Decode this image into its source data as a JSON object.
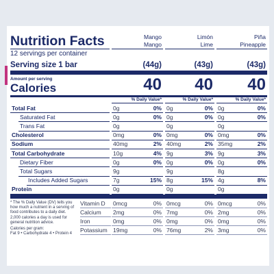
{
  "header": {
    "title": "Nutrition Facts",
    "servings": "12 servings per container",
    "serving_size": "Serving size 1 bar",
    "amount_per_serving": "Amount per serving",
    "calories_label": "Calories",
    "daily_value_heading": "% Daily Value*"
  },
  "columns": [
    {
      "name": "Mango",
      "name_en": "Mango",
      "serving_size": "(44g)",
      "calories": 40
    },
    {
      "name": "Limón",
      "name_en": "Lime",
      "serving_size": "(43g)",
      "calories": 40
    },
    {
      "name": "Piña",
      "name_en": "Pineapple",
      "serving_size": "(43g)",
      "calories": 40
    }
  ],
  "nutrients": [
    {
      "label": "Total Fat",
      "bold": true,
      "level": 0,
      "values": [
        [
          "0g",
          "0%"
        ],
        [
          "0g",
          "0%"
        ],
        [
          "0g",
          "0%"
        ]
      ]
    },
    {
      "label": "Saturated Fat",
      "bold": false,
      "level": 1,
      "values": [
        [
          "0g",
          "0%"
        ],
        [
          "0g",
          "0%"
        ],
        [
          "0g",
          "0%"
        ]
      ]
    },
    {
      "label": "Trans Fat",
      "bold": false,
      "level": 1,
      "values": [
        [
          "0g"
        ],
        [
          "0g"
        ],
        [
          "0g"
        ]
      ]
    },
    {
      "label": "Cholesterol",
      "bold": true,
      "level": 0,
      "values": [
        [
          "0mg",
          "0%"
        ],
        [
          "0mg",
          "0%"
        ],
        [
          "0mg",
          "0%"
        ]
      ]
    },
    {
      "label": "Sodium",
      "bold": true,
      "level": 0,
      "values": [
        [
          "40mg",
          "2%"
        ],
        [
          "40mg",
          "2%"
        ],
        [
          "35mg",
          "2%"
        ]
      ]
    },
    {
      "label": "Total Carbohydrate",
      "bold": true,
      "level": 0,
      "values": [
        [
          "10g",
          "4%"
        ],
        [
          "9g",
          "3%"
        ],
        [
          "9g",
          "3%"
        ]
      ]
    },
    {
      "label": "Dietary Fiber",
      "bold": false,
      "level": 1,
      "values": [
        [
          "0g",
          "0%"
        ],
        [
          "0g",
          "0%"
        ],
        [
          "0g",
          "0%"
        ]
      ]
    },
    {
      "label": "Total Sugars",
      "bold": false,
      "level": 1,
      "values": [
        [
          "9g"
        ],
        [
          "9g"
        ],
        [
          "8g"
        ]
      ]
    },
    {
      "label": "Includes Added Sugars",
      "bold": false,
      "level": 2,
      "values": [
        [
          "7g",
          "15%"
        ],
        [
          "8g",
          "15%"
        ],
        [
          "4g",
          "8%"
        ]
      ]
    },
    {
      "label": "Protein",
      "bold": true,
      "level": 0,
      "values": [
        [
          "0g"
        ],
        [
          "0g"
        ],
        [
          "0g"
        ]
      ]
    }
  ],
  "vitamins": [
    {
      "label": "Vitamin D",
      "values": [
        [
          "0mcg",
          "0%"
        ],
        [
          "0mcg",
          "0%"
        ],
        [
          "0mcg",
          "0%"
        ]
      ]
    },
    {
      "label": "Calcium",
      "values": [
        [
          "2mg",
          "0%"
        ],
        [
          "7mg",
          "0%"
        ],
        [
          "2mg",
          "0%"
        ]
      ]
    },
    {
      "label": "Iron",
      "values": [
        [
          "0mg",
          "0%"
        ],
        [
          "0mg",
          "0%"
        ],
        [
          "0mg",
          "0%"
        ]
      ]
    },
    {
      "label": "Potassium",
      "values": [
        [
          "19mg",
          "0%"
        ],
        [
          "76mg",
          "2%"
        ],
        [
          "3mg",
          "0%"
        ]
      ]
    }
  ],
  "footnote": {
    "text": "* The % Daily Value (DV) tells you how much a nutrient in a serving of food contributes to a daily diet. 2,000 calories a day is used for general nutrition advice.",
    "calories_per_gram": "Calories per gram:",
    "breakdown": "Fat 9 • Carbohydrate 4 • Protein 4"
  }
}
